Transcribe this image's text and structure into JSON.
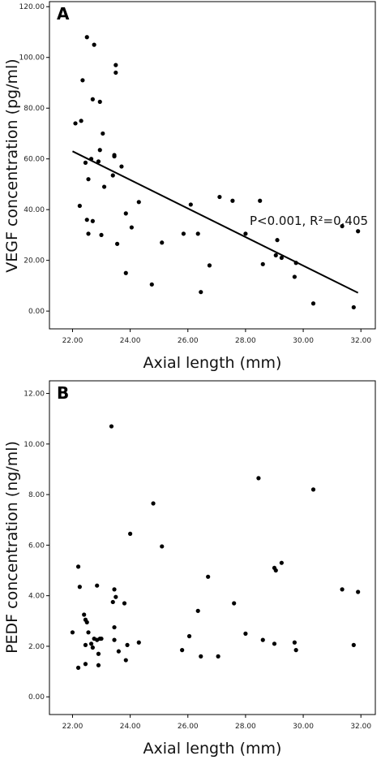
{
  "chart_data": [
    {
      "type": "scatter",
      "panel_label": "A",
      "xlabel": "Axial length (mm)",
      "ylabel": "VEGF concentration (pg/ml)",
      "xlim": [
        21.2,
        32.5
      ],
      "ylim": [
        -7,
        122
      ],
      "xticks": [
        22,
        24,
        26,
        28,
        30,
        32
      ],
      "xtick_labels": [
        "22.00",
        "24.00",
        "26.00",
        "28.00",
        "30.00",
        "32.00"
      ],
      "yticks": [
        0,
        20,
        40,
        60,
        80,
        100,
        120
      ],
      "ytick_labels": [
        "0.00",
        "20.00",
        "40.00",
        "60.00",
        "80.00",
        "100.00",
        "120.00"
      ],
      "annotation": "P<0.001, R²=0.405",
      "fit_line": {
        "x": [
          22.0,
          31.9
        ],
        "y": [
          63.0,
          7.2
        ]
      },
      "grid": false,
      "points": [
        [
          22.1,
          74
        ],
        [
          22.3,
          75
        ],
        [
          22.35,
          91
        ],
        [
          22.5,
          108
        ],
        [
          22.75,
          105
        ],
        [
          22.7,
          83.5
        ],
        [
          22.95,
          82.5
        ],
        [
          23.5,
          97
        ],
        [
          23.5,
          94
        ],
        [
          22.25,
          41.5
        ],
        [
          22.45,
          58.5
        ],
        [
          22.55,
          52
        ],
        [
          22.65,
          60
        ],
        [
          22.9,
          59
        ],
        [
          22.95,
          63.5
        ],
        [
          23.05,
          70
        ],
        [
          23.1,
          49
        ],
        [
          23.45,
          61.5
        ],
        [
          23.45,
          61
        ],
        [
          23.4,
          53.5
        ],
        [
          23.7,
          57
        ],
        [
          22.5,
          36
        ],
        [
          22.55,
          30.5
        ],
        [
          22.7,
          35.5
        ],
        [
          23.0,
          30
        ],
        [
          23.55,
          26.5
        ],
        [
          23.85,
          38.5
        ],
        [
          24.05,
          33
        ],
        [
          24.3,
          43
        ],
        [
          23.85,
          15
        ],
        [
          24.75,
          10.5
        ],
        [
          25.1,
          27
        ],
        [
          25.85,
          30.5
        ],
        [
          26.1,
          42
        ],
        [
          26.35,
          30.5
        ],
        [
          26.45,
          7.5
        ],
        [
          26.75,
          18
        ],
        [
          27.1,
          45
        ],
        [
          27.55,
          43.5
        ],
        [
          28.0,
          30.5
        ],
        [
          28.5,
          43.5
        ],
        [
          28.6,
          18.5
        ],
        [
          29.05,
          22
        ],
        [
          29.1,
          28
        ],
        [
          29.25,
          21
        ],
        [
          29.7,
          13.5
        ],
        [
          29.75,
          19
        ],
        [
          30.35,
          3
        ],
        [
          31.35,
          33.5
        ],
        [
          31.75,
          1.5
        ],
        [
          31.9,
          31.5
        ]
      ]
    },
    {
      "type": "scatter",
      "panel_label": "B",
      "xlabel": "Axial length (mm)",
      "ylabel": "PEDF concentration (ng/ml)",
      "xlim": [
        21.2,
        32.5
      ],
      "ylim": [
        -0.7,
        12.5
      ],
      "xticks": [
        22,
        24,
        26,
        28,
        30,
        32
      ],
      "xtick_labels": [
        "22.00",
        "24.00",
        "26.00",
        "28.00",
        "30.00",
        "32.00"
      ],
      "yticks": [
        0,
        2,
        4,
        6,
        8,
        10,
        12
      ],
      "ytick_labels": [
        "0.00",
        "2.00",
        "4.00",
        "6.00",
        "8.00",
        "10.00",
        "12.00"
      ],
      "grid": false,
      "points": [
        [
          22.0,
          2.55
        ],
        [
          22.2,
          1.15
        ],
        [
          22.2,
          5.15
        ],
        [
          22.25,
          4.35
        ],
        [
          22.4,
          3.25
        ],
        [
          22.45,
          3.05
        ],
        [
          22.5,
          2.95
        ],
        [
          22.45,
          2.05
        ],
        [
          22.45,
          1.3
        ],
        [
          22.55,
          2.55
        ],
        [
          22.65,
          2.1
        ],
        [
          22.7,
          1.95
        ],
        [
          22.75,
          2.3
        ],
        [
          22.85,
          4.4
        ],
        [
          22.85,
          2.25
        ],
        [
          22.9,
          1.25
        ],
        [
          22.9,
          1.7
        ],
        [
          22.95,
          2.3
        ],
        [
          23.0,
          2.3
        ],
        [
          23.35,
          10.7
        ],
        [
          23.4,
          3.75
        ],
        [
          23.45,
          4.25
        ],
        [
          23.5,
          3.95
        ],
        [
          23.45,
          2.75
        ],
        [
          23.45,
          2.25
        ],
        [
          23.6,
          1.8
        ],
        [
          23.8,
          3.7
        ],
        [
          23.85,
          1.45
        ],
        [
          23.9,
          2.05
        ],
        [
          24.0,
          6.45
        ],
        [
          24.3,
          2.15
        ],
        [
          24.8,
          7.65
        ],
        [
          25.1,
          5.95
        ],
        [
          25.8,
          1.85
        ],
        [
          26.05,
          2.4
        ],
        [
          26.35,
          3.4
        ],
        [
          26.45,
          1.6
        ],
        [
          26.7,
          4.75
        ],
        [
          27.05,
          1.6
        ],
        [
          27.6,
          3.7
        ],
        [
          28.0,
          2.5
        ],
        [
          28.45,
          8.65
        ],
        [
          28.6,
          2.25
        ],
        [
          29.0,
          5.1
        ],
        [
          29.05,
          5.0
        ],
        [
          29.0,
          2.1
        ],
        [
          29.25,
          5.3
        ],
        [
          29.7,
          2.15
        ],
        [
          29.75,
          1.85
        ],
        [
          30.35,
          8.2
        ],
        [
          31.35,
          4.25
        ],
        [
          31.75,
          2.05
        ],
        [
          31.9,
          4.15
        ]
      ]
    }
  ]
}
